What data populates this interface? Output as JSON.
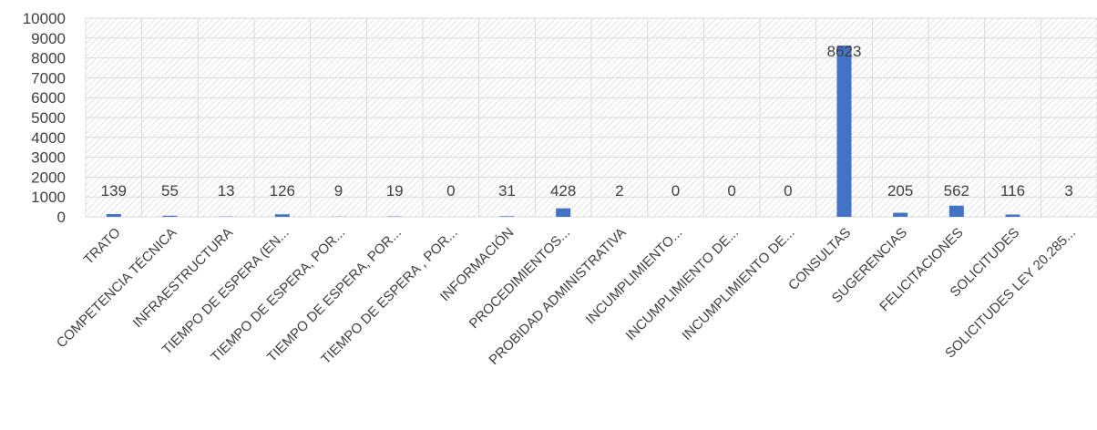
{
  "chart_data": {
    "type": "bar",
    "categories": [
      "TRATO",
      "COMPETENCIA TÉCNICA",
      "INFRAESTRUCTURA",
      "TIEMPO DE ESPERA (EN...",
      "TIEMPO DE ESPERA, POR...",
      "TIEMPO DE ESPERA, POR...",
      "TIEMPO DE ESPERA , POR...",
      "INFORMACIÓN",
      "PROCEDIMIENTOS...",
      "PROBIDAD ADMINISTRATIVA",
      "INCUMPLIMIENTO...",
      "INCUMPLIMIENTO DE...",
      "INCUMPLIMIENTO DE...",
      "CONSULTAS",
      "SUGERENCIAS",
      "FELICITACIONES",
      "SOLICITUDES",
      "SOLICITUDES LEY 20.285..."
    ],
    "values": [
      139,
      55,
      13,
      126,
      9,
      19,
      0,
      31,
      428,
      2,
      0,
      0,
      0,
      8623,
      205,
      562,
      116,
      3
    ],
    "data_labels": [
      "139",
      "55",
      "13",
      "126",
      "9",
      "19",
      "0",
      "31",
      "428",
      "2",
      "0",
      "0",
      "0",
      "8623",
      "205",
      "562",
      "116",
      "3"
    ],
    "y_ticks": [
      "0",
      "1000",
      "2000",
      "3000",
      "4000",
      "5000",
      "6000",
      "7000",
      "8000",
      "9000",
      "10000"
    ],
    "ylim": [
      0,
      10000
    ],
    "title": "",
    "xlabel": "",
    "ylabel": "",
    "grid": true,
    "legend": "none",
    "bar_color": "#4472C4",
    "plot_pattern": "diagonal-hatch",
    "grid_color": "#d9d9d9"
  }
}
